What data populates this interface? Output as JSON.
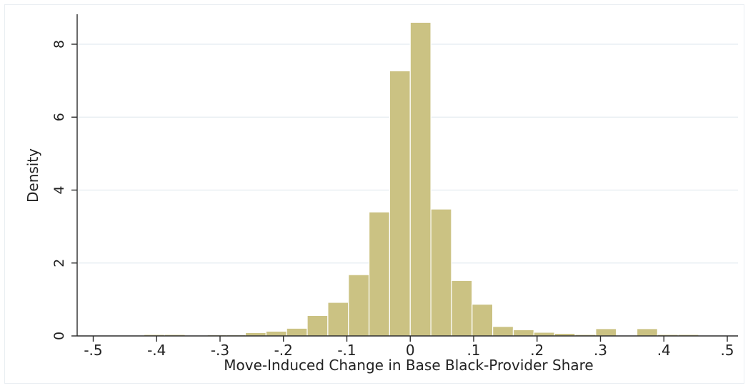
{
  "chart_data": {
    "type": "bar",
    "title": "",
    "xlabel": "Move-Induced Change in Base Black-Provider Share",
    "ylabel": "Density",
    "xlim": [
      -0.5,
      0.5
    ],
    "ylim": [
      0,
      8.6
    ],
    "x_ticks": [
      -0.5,
      -0.4,
      -0.3,
      -0.2,
      -0.1,
      0,
      0.1,
      0.2,
      0.3,
      0.4,
      0.5
    ],
    "x_tick_labels": [
      "-.5",
      "-.4",
      "-.3",
      "-.2",
      "-.1",
      "0",
      ".1",
      ".2",
      ".3",
      ".4",
      ".5"
    ],
    "y_ticks": [
      0,
      2,
      4,
      6,
      8
    ],
    "y_tick_labels": [
      "0",
      "2",
      "4",
      "6",
      "8"
    ],
    "grid": true,
    "bin_width": 0.0325,
    "bins": [
      {
        "x0": -0.485,
        "value": 0.02
      },
      {
        "x0": -0.42,
        "value": 0.04
      },
      {
        "x0": -0.3875,
        "value": 0.04
      },
      {
        "x0": -0.32,
        "value": 0.03
      },
      {
        "x0": -0.29,
        "value": 0.03
      },
      {
        "x0": -0.26,
        "value": 0.09
      },
      {
        "x0": -0.2275,
        "value": 0.13
      },
      {
        "x0": -0.195,
        "value": 0.21
      },
      {
        "x0": -0.1625,
        "value": 0.56
      },
      {
        "x0": -0.13,
        "value": 0.92
      },
      {
        "x0": -0.0975,
        "value": 1.68
      },
      {
        "x0": -0.065,
        "value": 3.4
      },
      {
        "x0": -0.0325,
        "value": 7.27
      },
      {
        "x0": 0.0,
        "value": 8.6
      },
      {
        "x0": 0.0325,
        "value": 3.48
      },
      {
        "x0": 0.065,
        "value": 1.52
      },
      {
        "x0": 0.0975,
        "value": 0.87
      },
      {
        "x0": 0.13,
        "value": 0.26
      },
      {
        "x0": 0.1625,
        "value": 0.17
      },
      {
        "x0": 0.195,
        "value": 0.1
      },
      {
        "x0": 0.2275,
        "value": 0.07
      },
      {
        "x0": 0.26,
        "value": 0.04
      },
      {
        "x0": 0.2925,
        "value": 0.2
      },
      {
        "x0": 0.3575,
        "value": 0.2
      },
      {
        "x0": 0.39,
        "value": 0.04
      },
      {
        "x0": 0.4225,
        "value": 0.04
      }
    ],
    "colors": {
      "bar_fill": "#cbc283",
      "bar_stroke": "#ffffff",
      "axis": "#2b2b2b",
      "grid": "#e4ecf0"
    }
  }
}
